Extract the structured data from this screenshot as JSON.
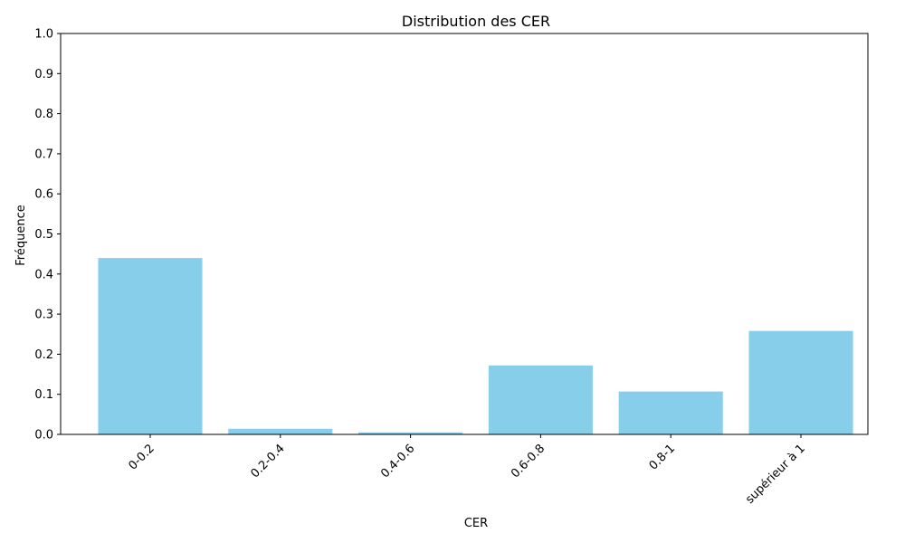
{
  "chart_data": {
    "type": "bar",
    "title": "Distribution des CER",
    "xlabel": "CER",
    "ylabel": "Fréquence",
    "categories": [
      "0-0.2",
      "0.2-0.4",
      "0.4-0.6",
      "0.6-0.8",
      "0.8-1",
      "supérieur à 1"
    ],
    "values": [
      0.44,
      0.014,
      0.005,
      0.172,
      0.107,
      0.258
    ],
    "ylim": [
      0,
      1.0
    ],
    "yticks": [
      "0.0",
      "0.1",
      "0.2",
      "0.3",
      "0.4",
      "0.5",
      "0.6",
      "0.7",
      "0.8",
      "0.9",
      "1.0"
    ],
    "bar_color": "#87CEEB",
    "grid": false,
    "xtick_rotation": 45
  }
}
